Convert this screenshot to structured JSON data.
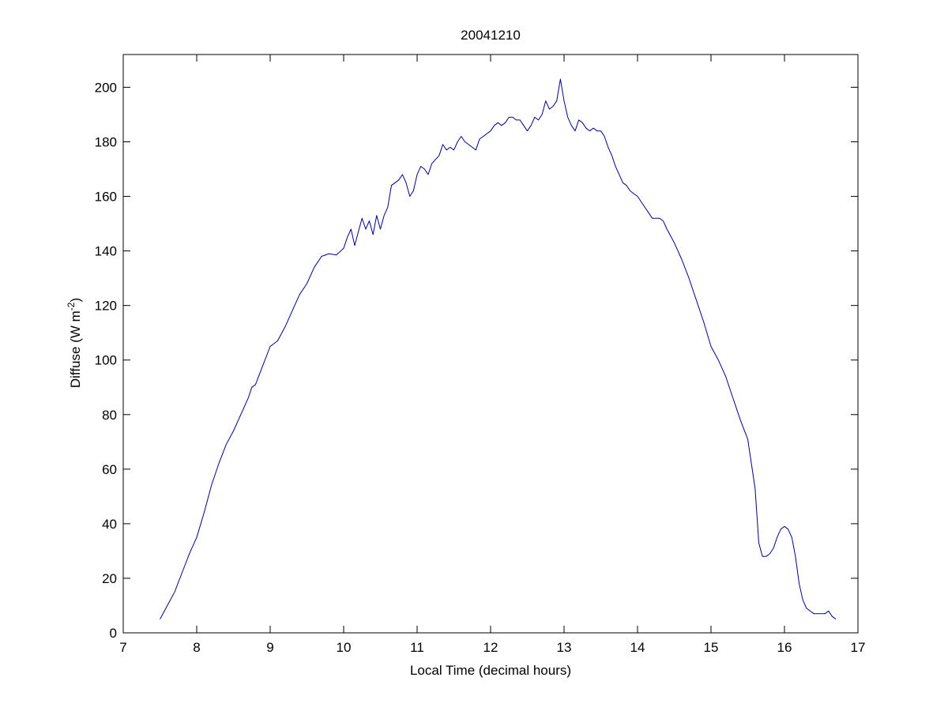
{
  "chart_data": {
    "type": "line",
    "title": "20041210",
    "xlabel": "Local Time (decimal hours)",
    "ylabel": {
      "base": "Diffuse (W m",
      "exponent": "-2",
      "close": ")"
    },
    "xlim": [
      7,
      17
    ],
    "ylim": [
      0,
      212
    ],
    "xticks": [
      7,
      8,
      9,
      10,
      11,
      12,
      13,
      14,
      15,
      16,
      17
    ],
    "yticks": [
      0,
      20,
      40,
      60,
      80,
      100,
      120,
      140,
      160,
      180,
      200
    ],
    "grid": false,
    "legend": "none",
    "series": [
      {
        "color": "#00008B",
        "x": [
          7.5,
          7.6,
          7.7,
          7.8,
          7.9,
          8.0,
          8.1,
          8.2,
          8.3,
          8.4,
          8.5,
          8.6,
          8.7,
          8.75,
          8.8,
          8.9,
          9.0,
          9.1,
          9.2,
          9.3,
          9.4,
          9.5,
          9.6,
          9.7,
          9.8,
          9.9,
          10.0,
          10.05,
          10.1,
          10.15,
          10.2,
          10.25,
          10.3,
          10.35,
          10.4,
          10.45,
          10.5,
          10.55,
          10.6,
          10.65,
          10.7,
          10.75,
          10.8,
          10.85,
          10.9,
          10.95,
          11.0,
          11.05,
          11.1,
          11.15,
          11.2,
          11.3,
          11.35,
          11.4,
          11.45,
          11.5,
          11.55,
          11.6,
          11.65,
          11.7,
          11.75,
          11.8,
          11.85,
          11.9,
          11.95,
          12.0,
          12.05,
          12.1,
          12.15,
          12.2,
          12.25,
          12.3,
          12.35,
          12.4,
          12.45,
          12.5,
          12.55,
          12.6,
          12.65,
          12.7,
          12.75,
          12.8,
          12.85,
          12.9,
          12.95,
          13.0,
          13.05,
          13.1,
          13.15,
          13.2,
          13.25,
          13.3,
          13.35,
          13.4,
          13.45,
          13.5,
          13.55,
          13.6,
          13.65,
          13.7,
          13.75,
          13.8,
          13.85,
          13.9,
          13.95,
          14.0,
          14.05,
          14.1,
          14.15,
          14.2,
          14.25,
          14.3,
          14.35,
          14.4,
          14.5,
          14.6,
          14.7,
          14.8,
          14.9,
          15.0,
          15.1,
          15.2,
          15.3,
          15.4,
          15.5,
          15.6,
          15.65,
          15.7,
          15.75,
          15.8,
          15.85,
          15.9,
          15.95,
          16.0,
          16.05,
          16.1,
          16.15,
          16.2,
          16.25,
          16.3,
          16.35,
          16.4,
          16.45,
          16.5,
          16.55,
          16.6,
          16.65,
          16.7
        ],
        "y": [
          5,
          10,
          15,
          22,
          29,
          35,
          44,
          54,
          62,
          69,
          74,
          80,
          86,
          90,
          91,
          98,
          105,
          107,
          112,
          118,
          124,
          128,
          134,
          138,
          139,
          138.5,
          141,
          145,
          148,
          142,
          147,
          152,
          148,
          151,
          146,
          153,
          148,
          153,
          156,
          164,
          165,
          166,
          168,
          165,
          160,
          162,
          168,
          171,
          170,
          168,
          172,
          175,
          179,
          177,
          178,
          177,
          180,
          182,
          180,
          179,
          178,
          177,
          181,
          182,
          183,
          184,
          186,
          187,
          186,
          187,
          189,
          189,
          188,
          188,
          186,
          184,
          186,
          189,
          188,
          190,
          195,
          192,
          193,
          195,
          203,
          195,
          189,
          186,
          184,
          188,
          187,
          185,
          184,
          185,
          184,
          184,
          182,
          178,
          175,
          171,
          168,
          165,
          164,
          162,
          161,
          160,
          158,
          156,
          154,
          152,
          152,
          152,
          151,
          148,
          143,
          137,
          130,
          122,
          114,
          105,
          100,
          94,
          86,
          78,
          71,
          53,
          33,
          28,
          28,
          29,
          31,
          35,
          38,
          39,
          38,
          35,
          28,
          18,
          12,
          9,
          8,
          7,
          7,
          7,
          7,
          8,
          6,
          5
        ]
      }
    ]
  }
}
